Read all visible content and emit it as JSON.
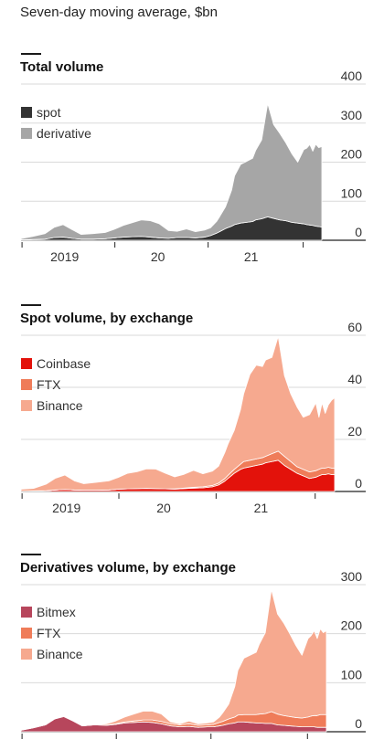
{
  "subtitle": "Seven-day moving average, $bn",
  "chart_data": [
    {
      "type": "area",
      "title": "Total volume",
      "unit": "$bn",
      "stacked": true,
      "legend": "left",
      "ylim": [
        0,
        400
      ],
      "yticks": [
        0,
        100,
        200,
        300,
        400
      ],
      "xlim": [
        0,
        100
      ],
      "xticks": [
        {
          "x": 14.5,
          "label": "2019"
        },
        {
          "x": 45.5,
          "label": "20"
        },
        {
          "x": 76.5,
          "label": "21"
        }
      ],
      "x": [
        0,
        4,
        8,
        11,
        14,
        17,
        20,
        24,
        28,
        31,
        34,
        37,
        40,
        43,
        46,
        49,
        52,
        55,
        58,
        61,
        63,
        65,
        66,
        68,
        70,
        71,
        73,
        75,
        77,
        78,
        80,
        82,
        84,
        86,
        88,
        90,
        92,
        94,
        95,
        96,
        97,
        98,
        99,
        100
      ],
      "series": [
        {
          "name": "spot",
          "color": "#333333",
          "values": [
            1,
            2,
            3,
            7,
            8,
            5,
            3,
            3,
            4,
            6,
            8,
            9,
            10,
            8,
            6,
            5,
            7,
            7,
            6,
            8,
            12,
            18,
            22,
            30,
            36,
            40,
            44,
            46,
            48,
            52,
            55,
            60,
            56,
            52,
            50,
            46,
            44,
            42,
            40,
            39,
            38,
            36,
            35,
            34
          ]
        },
        {
          "name": "derivative",
          "color": "#a6a6a6",
          "values": [
            3,
            8,
            14,
            26,
            32,
            22,
            12,
            14,
            16,
            22,
            30,
            36,
            42,
            42,
            36,
            20,
            16,
            22,
            16,
            18,
            20,
            30,
            38,
            56,
            92,
            125,
            150,
            156,
            162,
            178,
            202,
            290,
            240,
            222,
            200,
            176,
            156,
            190,
            196,
            206,
            190,
            210,
            202,
            206
          ]
        }
      ]
    },
    {
      "type": "area",
      "title": "Spot volume, by exchange",
      "unit": "$bn",
      "stacked": true,
      "legend": "left",
      "ylim": [
        0,
        60
      ],
      "yticks": [
        0,
        20,
        40,
        60
      ],
      "xlim": [
        0,
        100
      ],
      "xticks": [
        {
          "x": 14.5,
          "label": "2019"
        },
        {
          "x": 45.5,
          "label": "20"
        },
        {
          "x": 76.5,
          "label": "21"
        }
      ],
      "x": [
        0,
        4,
        8,
        11,
        14,
        17,
        20,
        24,
        28,
        31,
        34,
        37,
        40,
        43,
        46,
        49,
        52,
        55,
        58,
        61,
        63,
        65,
        66,
        68,
        70,
        71,
        73,
        75,
        77,
        78,
        80,
        82,
        84,
        86,
        88,
        90,
        92,
        94,
        95,
        96,
        97,
        98,
        99,
        100
      ],
      "series": [
        {
          "name": "Coinbase",
          "color": "#e3120b",
          "values": [
            0.1,
            0.2,
            0.3,
            0.6,
            0.8,
            0.6,
            0.5,
            0.5,
            0.6,
            0.9,
            1,
            1.1,
            1.2,
            1.1,
            1,
            0.9,
            1.1,
            1.3,
            1.4,
            1.8,
            2.5,
            4,
            5,
            7,
            8.5,
            9,
            9.5,
            10,
            10.5,
            11,
            11.5,
            12,
            10,
            8.5,
            7,
            6,
            5,
            5.5,
            6,
            6.5,
            6.5,
            6.8,
            6.5,
            6.5
          ]
        },
        {
          "name": "FTX",
          "color": "#ef7c59",
          "values": [
            0,
            0,
            0,
            0,
            0,
            0,
            0,
            0,
            0,
            0,
            0,
            0,
            0,
            0,
            0,
            0.1,
            0.2,
            0.3,
            0.4,
            0.5,
            0.7,
            1,
            1.2,
            1.5,
            2,
            2.5,
            2.5,
            2.5,
            2.5,
            2.5,
            3,
            3.5,
            3.5,
            3,
            2.5,
            2.5,
            2.5,
            2.5,
            2.5,
            2.5,
            2.5,
            2.5,
            2.5,
            2.5
          ]
        },
        {
          "name": "Binance",
          "color": "#f6a98f",
          "values": [
            0.8,
            1,
            2.5,
            4.5,
            5.5,
            3.5,
            2.5,
            3,
            3.5,
            4.5,
            6,
            6.5,
            7.5,
            7.5,
            6,
            4.6,
            5.3,
            6.5,
            5,
            5.5,
            6.5,
            10,
            12,
            15,
            21,
            26,
            33,
            36,
            35,
            37,
            37,
            44,
            31,
            26,
            23,
            20,
            22,
            26,
            20,
            25,
            21,
            24,
            26,
            27
          ]
        }
      ]
    },
    {
      "type": "area",
      "title": "Derivatives volume, by exchange",
      "unit": "$bn",
      "stacked": true,
      "legend": "left",
      "ylim": [
        0,
        300
      ],
      "yticks": [
        0,
        100,
        200,
        300
      ],
      "xlim": [
        0,
        100
      ],
      "xticks": [],
      "x": [
        0,
        4,
        8,
        11,
        14,
        17,
        20,
        24,
        28,
        31,
        34,
        37,
        40,
        43,
        46,
        49,
        52,
        55,
        58,
        61,
        63,
        65,
        66,
        68,
        70,
        71,
        73,
        75,
        77,
        78,
        80,
        82,
        84,
        86,
        88,
        90,
        92,
        94,
        95,
        96,
        97,
        98,
        99,
        100
      ],
      "series": [
        {
          "name": "Bitmex",
          "color": "#b7465c",
          "values": [
            3,
            8,
            14,
            26,
            31,
            22,
            12,
            14,
            13,
            15,
            18,
            19,
            20,
            19,
            16,
            12,
            10,
            11,
            9,
            10,
            10,
            12,
            13,
            16,
            18,
            20,
            20,
            19,
            18,
            18,
            17,
            17,
            14,
            13,
            12,
            11,
            10,
            10,
            10,
            10,
            9,
            9,
            9,
            9
          ]
        },
        {
          "name": "FTX",
          "color": "#ef7c59",
          "values": [
            0,
            0,
            0,
            0,
            0,
            0,
            0,
            0,
            0.5,
            1,
            2,
            3,
            4,
            5,
            5,
            4,
            4,
            5,
            4,
            4,
            5,
            7,
            8,
            10,
            12,
            14,
            15,
            16,
            17,
            18,
            20,
            24,
            22,
            20,
            19,
            18,
            18,
            20,
            22,
            23,
            24,
            26,
            26,
            26
          ]
        },
        {
          "name": "Binance",
          "color": "#f6a98f",
          "values": [
            0,
            0,
            0,
            0,
            1,
            0,
            0,
            0,
            2.5,
            6,
            10,
            14,
            18,
            18,
            15,
            4,
            2,
            6,
            3,
            4,
            5,
            11,
            17,
            30,
            62,
            91,
            115,
            121,
            127,
            142,
            165,
            249,
            204,
            189,
            169,
            147,
            128,
            160,
            164,
            173,
            157,
            175,
            167,
            171
          ]
        }
      ]
    }
  ]
}
